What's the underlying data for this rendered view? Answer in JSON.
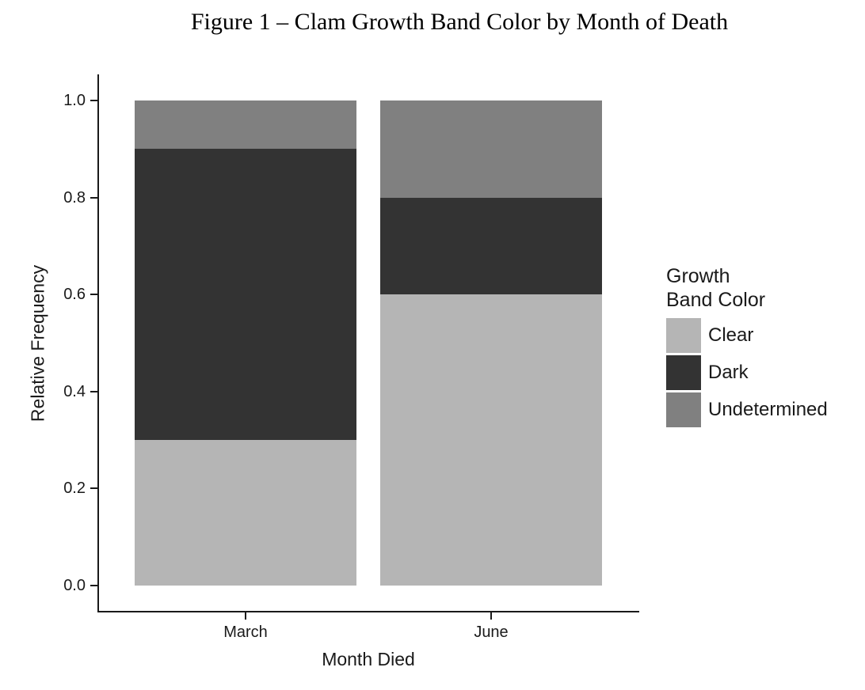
{
  "chart_data": {
    "type": "bar",
    "stacking": "relative-frequency-stacked",
    "title": "Figure 1 – Clam Growth Band Color by Month of Death",
    "xlabel": "Month Died",
    "ylabel": "Relative Frequency",
    "categories": [
      "March",
      "June"
    ],
    "series": [
      {
        "name": "Clear",
        "color": "#b5b5b5",
        "values": [
          0.3,
          0.6
        ]
      },
      {
        "name": "Dark",
        "color": "#333333",
        "values": [
          0.6,
          0.2
        ]
      },
      {
        "name": "Undetermined",
        "color": "#808080",
        "values": [
          0.1,
          0.2
        ]
      }
    ],
    "ylim": [
      0,
      1
    ],
    "y_tick_labels": [
      "0.0",
      "0.2",
      "0.4",
      "0.6",
      "0.8",
      "1.0"
    ],
    "grid": false,
    "legend": {
      "position": "right",
      "title_lines": [
        "Growth",
        "Band Color"
      ]
    }
  },
  "colors": {
    "background": "#ffffff",
    "axis_line": "#1a1a1a",
    "text": "#1a1a1a",
    "title_text": "#000000"
  }
}
